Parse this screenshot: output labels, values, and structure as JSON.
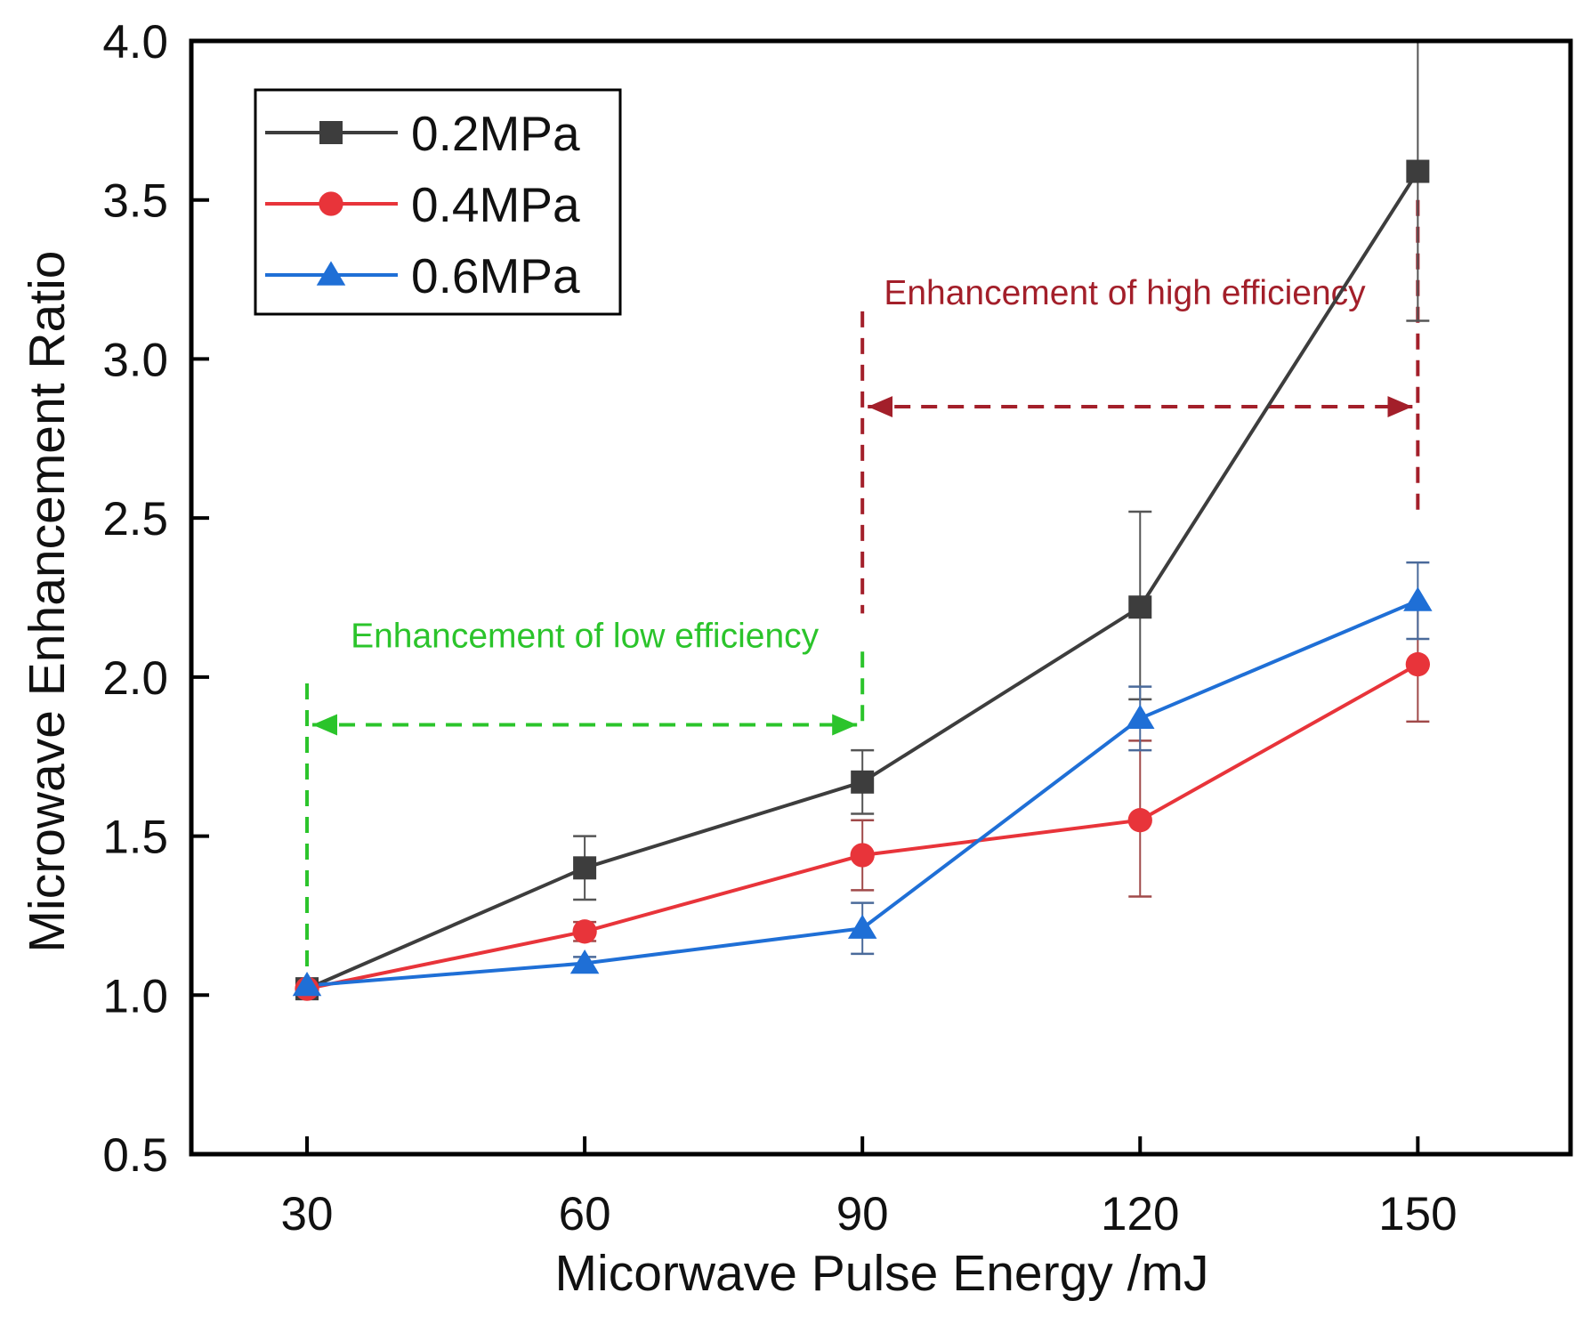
{
  "chart_data": {
    "type": "line",
    "title": "",
    "xlabel": "Micorwave Pulse Energy /mJ",
    "ylabel": "Microwave Enhancement Ratio",
    "x": [
      30,
      60,
      90,
      120,
      150
    ],
    "xticks": [
      "30",
      "60",
      "90",
      "120",
      "150"
    ],
    "yticks": [
      "0.5",
      "1.0",
      "1.5",
      "2.0",
      "2.5",
      "3.0",
      "3.5",
      "4.0"
    ],
    "xlim": [
      17.5,
      166.5
    ],
    "ylim": [
      0.5,
      4.0
    ],
    "grid": false,
    "legend_position": "top-left",
    "series": [
      {
        "name": "0.2MPa",
        "color": "#3d3d3d",
        "marker": "square",
        "values": [
          1.02,
          1.4,
          1.67,
          2.22,
          3.59
        ],
        "err_low": [
          1.02,
          1.3,
          1.57,
          1.93,
          3.12
        ],
        "err_high": [
          1.02,
          1.5,
          1.77,
          2.52,
          4.06
        ]
      },
      {
        "name": "0.4MPa",
        "color": "#e8343a",
        "marker": "circle",
        "values": [
          1.02,
          1.2,
          1.44,
          1.55,
          2.04
        ],
        "err_low": [
          1.02,
          1.17,
          1.33,
          1.31,
          1.86
        ],
        "err_high": [
          1.02,
          1.23,
          1.55,
          1.8,
          2.22
        ]
      },
      {
        "name": "0.6MPa",
        "color": "#1f6fd6",
        "marker": "triangle",
        "values": [
          1.03,
          1.1,
          1.21,
          1.87,
          2.24
        ],
        "err_low": [
          1.03,
          1.08,
          1.13,
          1.77,
          2.12
        ],
        "err_high": [
          1.03,
          1.12,
          1.29,
          1.97,
          2.36
        ]
      }
    ],
    "annotations": [
      {
        "text": "Enhancement of low efficiency",
        "color": "#2bc42b",
        "x_from": 30,
        "x_to": 90,
        "y_arrow": 1.85
      },
      {
        "text": "Enhancement of high efficiency",
        "color": "#a31f2a",
        "x_from": 90,
        "x_to": 150,
        "y_arrow": 2.85
      }
    ]
  }
}
